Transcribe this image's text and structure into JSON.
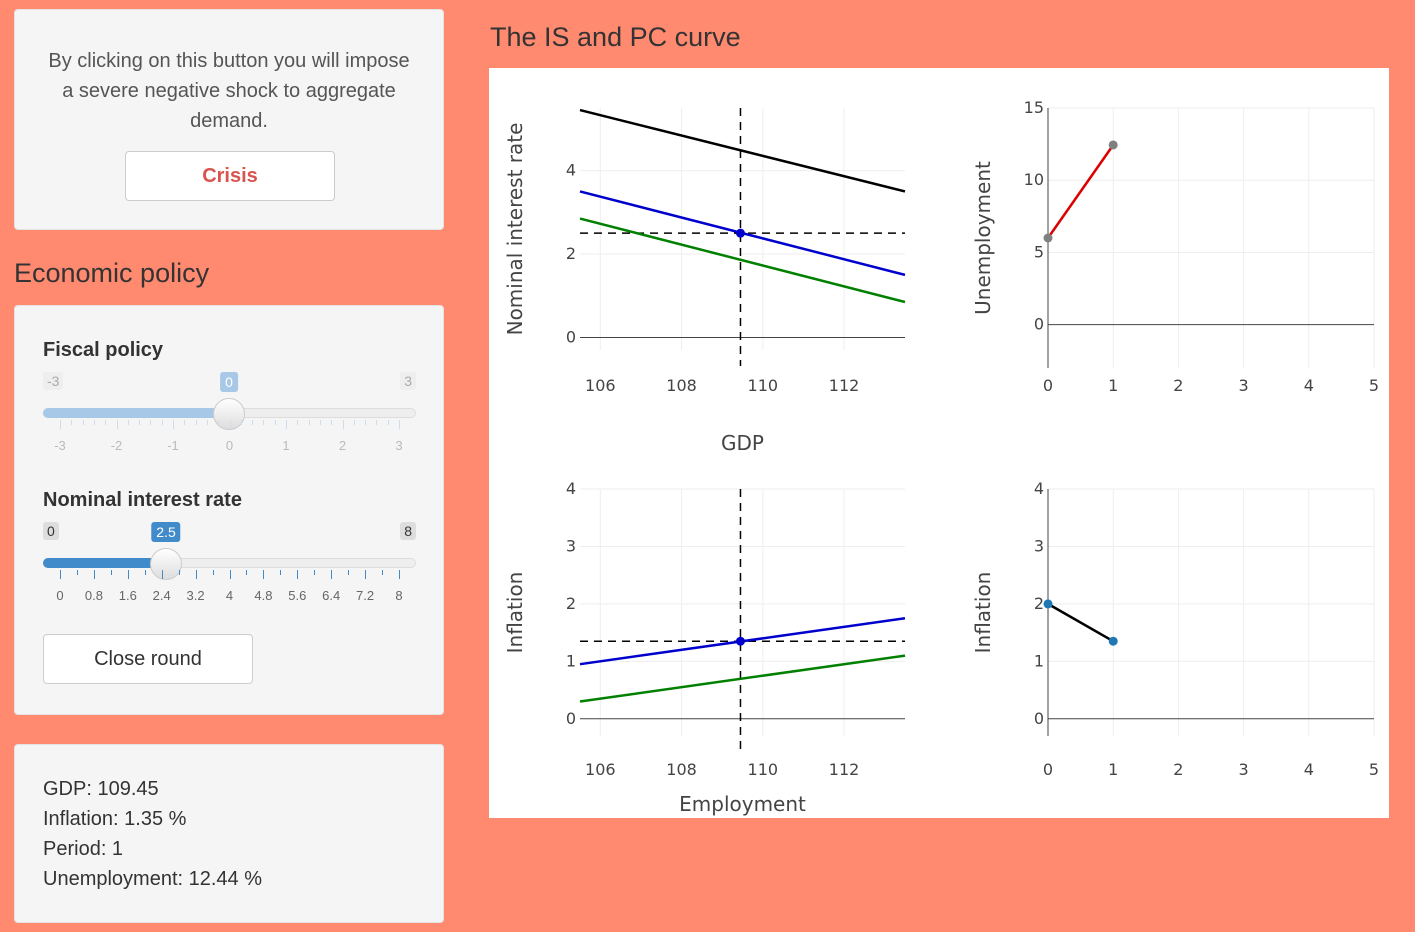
{
  "crisis": {
    "text": "By clicking on this button you will impose a severe negative shock to aggregate demand.",
    "button_label": "Crisis"
  },
  "economic_policy": {
    "title": "Economic policy",
    "fiscal": {
      "label": "Fiscal policy",
      "min": "-3",
      "max": "3",
      "value": "0",
      "tick_labels": [
        "-3",
        "-2",
        "-1",
        "0",
        "1",
        "2",
        "3"
      ]
    },
    "interest": {
      "label": "Nominal interest rate",
      "min": "0",
      "max": "8",
      "value": "2.5",
      "tick_labels": [
        "0",
        "0.8",
        "1.6",
        "2.4",
        "3.2",
        "4",
        "4.8",
        "5.6",
        "6.4",
        "7.2",
        "8"
      ]
    },
    "close_button": "Close round"
  },
  "stats": {
    "gdp": "GDP: 109.45",
    "inflation": "Inflation: 1.35 %",
    "period": "Period: 1",
    "unemployment": "Unemployment: 12.44 %"
  },
  "colors": {
    "background": "#ff8a70",
    "crisis_text": "#d9534f",
    "fiscal_fill": "#a8c8e8",
    "interest_fill": "#428bca",
    "black_line": "#000000",
    "blue_line": "#0000cc",
    "green_line": "#008000",
    "red_line": "#dd0000",
    "gray_point": "#808080",
    "blue_point": "#1f77b4"
  },
  "chart_title": "The IS and PC curve",
  "chart_data": [
    {
      "type": "line",
      "id": "is",
      "xlabel": "GDP",
      "ylabel": "Nominal interest rate",
      "xlim": [
        105.5,
        113.5
      ],
      "ylim": [
        -0.3,
        5.5
      ],
      "xticks": [
        106,
        108,
        110,
        112
      ],
      "yticks": [
        0,
        2,
        4
      ],
      "series": [
        {
          "color": "black",
          "x": [
            105.5,
            113.5
          ],
          "y": [
            5.45,
            3.5
          ]
        },
        {
          "color": "blue",
          "x": [
            105.5,
            113.5
          ],
          "y": [
            3.5,
            1.5
          ]
        },
        {
          "color": "green",
          "x": [
            105.5,
            113.5
          ],
          "y": [
            2.85,
            0.85
          ]
        }
      ],
      "vline": 109.45,
      "hline": 2.5,
      "point": [
        109.45,
        2.5
      ]
    },
    {
      "type": "line",
      "id": "unemp",
      "xlabel": "",
      "ylabel": "Unemployment",
      "xlim": [
        0,
        5
      ],
      "ylim": [
        -3,
        15
      ],
      "xticks": [
        0,
        1,
        2,
        3,
        4,
        5
      ],
      "yticks": [
        0,
        5,
        10,
        15
      ],
      "series": [
        {
          "color": "red",
          "x": [
            0,
            1
          ],
          "y": [
            6,
            12.44
          ]
        }
      ],
      "points": [
        [
          0,
          6
        ],
        [
          1,
          12.44
        ]
      ]
    },
    {
      "type": "line",
      "id": "pc",
      "xlabel": "Employment",
      "ylabel": "Inflation",
      "xlim": [
        105.5,
        113.5
      ],
      "ylim": [
        -0.3,
        4
      ],
      "xticks": [
        106,
        108,
        110,
        112
      ],
      "yticks": [
        0,
        1,
        2,
        3,
        4
      ],
      "series": [
        {
          "color": "blue",
          "x": [
            105.5,
            113.5
          ],
          "y": [
            0.95,
            1.75
          ]
        },
        {
          "color": "green",
          "x": [
            105.5,
            113.5
          ],
          "y": [
            0.3,
            1.1
          ]
        }
      ],
      "vline": 109.45,
      "hline": 1.35,
      "point": [
        109.45,
        1.35
      ]
    },
    {
      "type": "line",
      "id": "infl",
      "xlabel": "",
      "ylabel": "Inflation",
      "xlim": [
        0,
        5
      ],
      "ylim": [
        -0.3,
        4
      ],
      "xticks": [
        0,
        1,
        2,
        3,
        4,
        5
      ],
      "yticks": [
        0,
        1,
        2,
        3,
        4
      ],
      "series": [
        {
          "color": "black",
          "x": [
            0,
            1
          ],
          "y": [
            2,
            1.35
          ]
        }
      ],
      "points": [
        [
          0,
          2
        ],
        [
          1,
          1.35
        ]
      ]
    }
  ]
}
